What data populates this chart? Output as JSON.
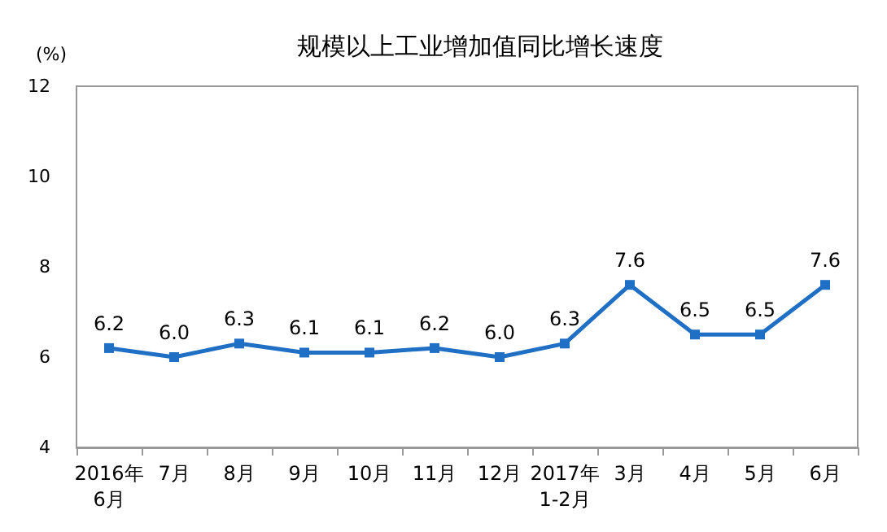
{
  "chart_data": {
    "type": "line",
    "title": "规模以上工业增加值同比增长速度",
    "ylabel": "(%)",
    "categories": [
      "2016年\n6月",
      "7月",
      "8月",
      "9月",
      "10月",
      "11月",
      "12月",
      "2017年\n1-2月",
      "3月",
      "4月",
      "5月",
      "6月"
    ],
    "series": [
      {
        "color": "#1f6fc5",
        "values": [
          6.2,
          6.0,
          6.3,
          6.1,
          6.1,
          6.2,
          6.0,
          6.3,
          7.6,
          6.5,
          6.5,
          7.6
        ],
        "value_labels": [
          "6.2",
          "6.0",
          "6.3",
          "6.1",
          "6.1",
          "6.2",
          "6.0",
          "6.3",
          "7.6",
          "6.5",
          "6.5",
          "7.6"
        ]
      }
    ],
    "ylim": [
      4,
      12
    ],
    "yticks": [
      4,
      6,
      8,
      10,
      12
    ],
    "grid": false,
    "marker": "square",
    "line_style": "solid"
  }
}
